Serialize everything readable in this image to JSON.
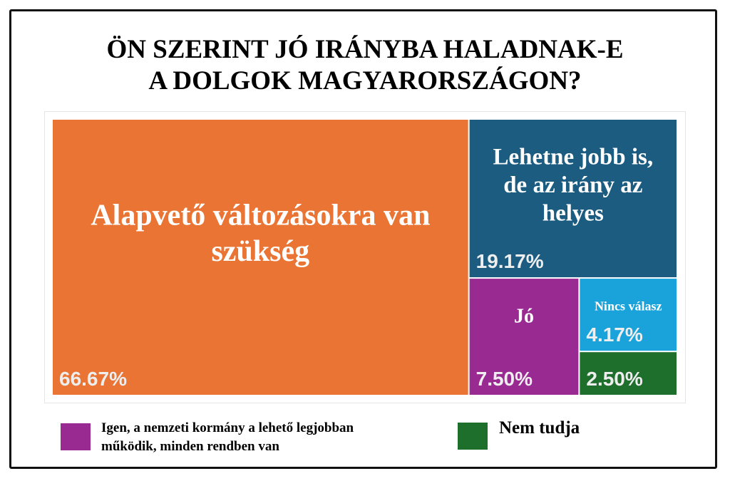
{
  "title_line1": "ÖN SZERINT JÓ IRÁNYBA HALADNAK-E",
  "title_line2": "A DOLGOK MAGYARORSZÁGON?",
  "chart_data": {
    "type": "treemap",
    "title": "ÖN SZERINT JÓ IRÁNYBA HALADNAK-E A DOLGOK MAGYARORSZÁGON?",
    "unit": "%",
    "items": [
      {
        "label": "Alapvető változásokra van szükség",
        "value": 66.67,
        "value_label": "66.67%",
        "color": "#E97434"
      },
      {
        "label": "Lehetne jobb is, de az irány az helyes",
        "value": 19.17,
        "value_label": "19.17%",
        "color": "#1C5C80"
      },
      {
        "label": "Jó",
        "value": 7.5,
        "value_label": "7.50%",
        "color": "#982A91"
      },
      {
        "label": "Nincs válasz",
        "value": 4.17,
        "value_label": "4.17%",
        "color": "#1AA3DB"
      },
      {
        "label": "",
        "value": 2.5,
        "value_label": "2.50%",
        "color": "#1E6E2C"
      }
    ],
    "legend": [
      {
        "label": "Igen, a nemzeti kormány a lehető legjobban működik, minden rendben van",
        "color": "#982A91"
      },
      {
        "label": "Nem tudja",
        "color": "#1E6E2C"
      }
    ]
  }
}
